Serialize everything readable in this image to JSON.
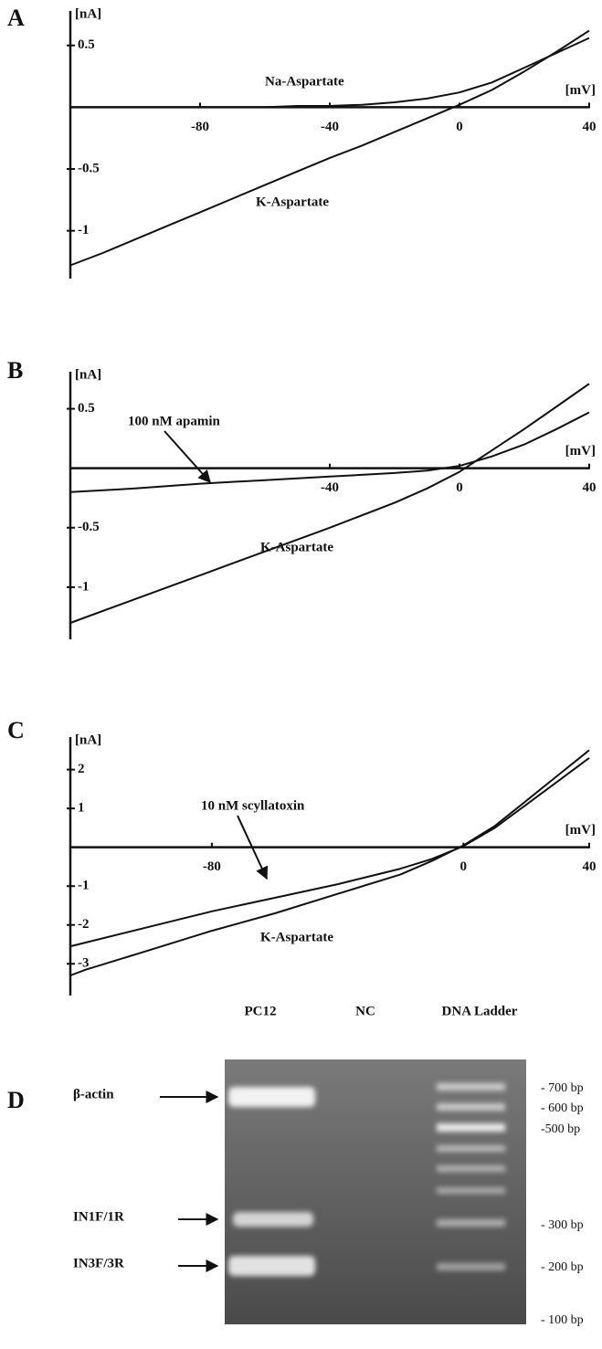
{
  "chart_data": [
    {
      "type": "line",
      "panel": "A",
      "y_label": "[nA]",
      "x_label": "[mV]",
      "x": [
        -120,
        -110,
        -100,
        -90,
        -80,
        -70,
        -60,
        -50,
        -40,
        -30,
        -20,
        -10,
        0,
        10,
        20,
        30,
        40
      ],
      "series": [
        {
          "name": "Na-Aspartate",
          "color": "#111111",
          "values": [
            0,
            0,
            0,
            0,
            0,
            0,
            0,
            0.01,
            0.01,
            0.02,
            0.04,
            0.07,
            0.12,
            0.2,
            0.32,
            0.44,
            0.56
          ]
        },
        {
          "name": "K-Aspartate",
          "color": "#111111",
          "values": [
            -1.28,
            -1.18,
            -1.07,
            -0.96,
            -0.85,
            -0.74,
            -0.63,
            -0.52,
            -0.41,
            -0.31,
            -0.2,
            -0.09,
            0.02,
            0.14,
            0.29,
            0.45,
            0.62
          ]
        }
      ],
      "xlim": [
        -120,
        40
      ],
      "ylim": [
        -1.35,
        0.72
      ],
      "xticks": [
        -80,
        -40,
        0,
        40
      ],
      "yticks": [
        0.5,
        -0.5,
        -1
      ]
    },
    {
      "type": "line",
      "panel": "B",
      "y_label": "[nA]",
      "x_label": "[mV]",
      "x": [
        -120,
        -100,
        -80,
        -60,
        -40,
        -20,
        -10,
        0,
        10,
        20,
        30,
        40
      ],
      "series": [
        {
          "name": "100 nM apamin",
          "color": "#111111",
          "values": [
            -0.2,
            -0.17,
            -0.13,
            -0.1,
            -0.07,
            -0.04,
            -0.02,
            0.02,
            0.1,
            0.2,
            0.33,
            0.47
          ]
        },
        {
          "name": "K-Aspartate",
          "color": "#111111",
          "values": [
            -1.3,
            -1.1,
            -0.9,
            -0.7,
            -0.5,
            -0.29,
            -0.17,
            -0.03,
            0.15,
            0.33,
            0.52,
            0.71
          ]
        }
      ],
      "xlim": [
        -120,
        40
      ],
      "ylim": [
        -1.4,
        0.75
      ],
      "xticks": [
        -40,
        0,
        40
      ],
      "yticks": [
        0.5,
        -0.5,
        -1
      ]
    },
    {
      "type": "line",
      "panel": "C",
      "y_label": "[nA]",
      "x_label": "[mV]",
      "x": [
        -125,
        -120,
        -100,
        -80,
        -60,
        -40,
        -20,
        -10,
        0,
        10,
        20,
        30,
        40
      ],
      "series": [
        {
          "name": "10 nM scyllatoxin",
          "color": "#111111",
          "values": [
            -2.55,
            -2.45,
            -2.05,
            -1.65,
            -1.3,
            -0.95,
            -0.55,
            -0.3,
            0.03,
            0.5,
            1.1,
            1.7,
            2.3
          ]
        },
        {
          "name": "K-Aspartate",
          "color": "#111111",
          "values": [
            -3.3,
            -3.15,
            -2.65,
            -2.15,
            -1.7,
            -1.2,
            -0.7,
            -0.35,
            0.05,
            0.55,
            1.2,
            1.85,
            2.5
          ]
        }
      ],
      "xlim": [
        -125,
        40
      ],
      "ylim": [
        -3.7,
        2.65
      ],
      "xticks": [
        -80,
        0,
        40
      ],
      "yticks": [
        2,
        1,
        -1,
        -2,
        -3
      ]
    }
  ],
  "gel": {
    "panel": "D",
    "lanes": [
      "PC12",
      "NC",
      "DNA Ladder"
    ],
    "bands": [
      "β-actin",
      "IN1F/1R",
      "IN3F/3R"
    ],
    "markers": [
      "- 700 bp",
      "- 600 bp",
      "-500 bp",
      "- 300 bp",
      "- 200 bp",
      "- 100 bp"
    ]
  }
}
